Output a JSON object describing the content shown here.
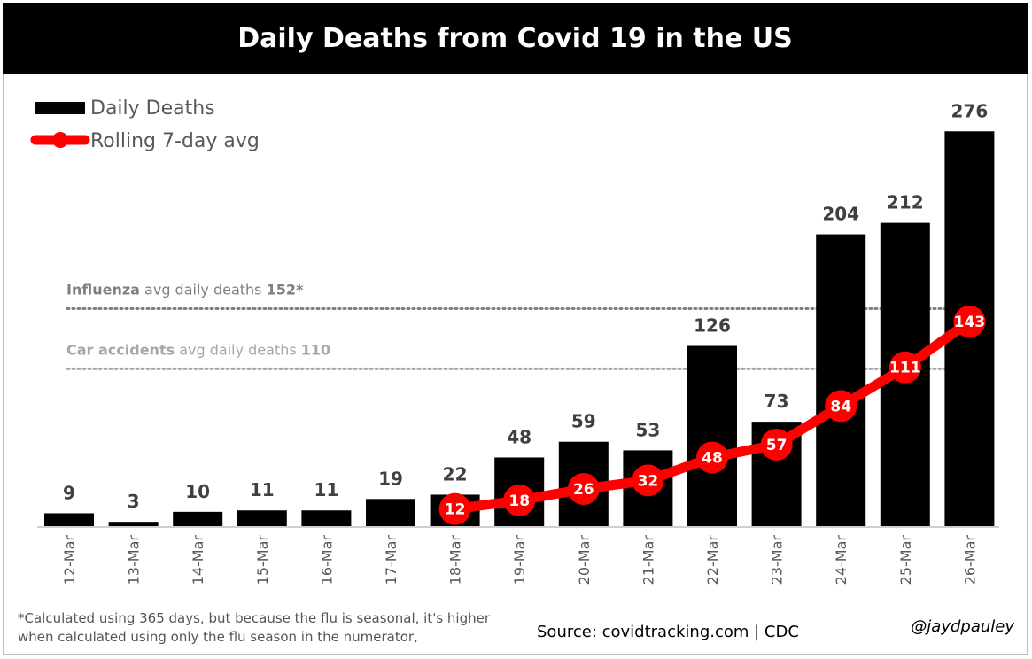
{
  "title": "Daily Deaths from Covid 19 in the US",
  "chart_data": {
    "type": "bar",
    "categories": [
      "12-Mar",
      "13-Mar",
      "14-Mar",
      "15-Mar",
      "16-Mar",
      "17-Mar",
      "18-Mar",
      "19-Mar",
      "20-Mar",
      "21-Mar",
      "22-Mar",
      "23-Mar",
      "24-Mar",
      "25-Mar",
      "26-Mar"
    ],
    "series": [
      {
        "name": "Daily Deaths",
        "type": "bar",
        "color": "#000000",
        "values": [
          9,
          3,
          10,
          11,
          11,
          19,
          22,
          48,
          59,
          53,
          126,
          73,
          204,
          212,
          276
        ]
      },
      {
        "name": "Rolling 7-day avg",
        "type": "line",
        "color": "#ff0000",
        "values": [
          null,
          null,
          null,
          null,
          null,
          null,
          12,
          18,
          26,
          32,
          48,
          57,
          84,
          111,
          143
        ]
      }
    ],
    "reference_lines": [
      {
        "bold_label": "Influenza",
        "label": "avg daily deaths",
        "value_label": "152*",
        "value": 152
      },
      {
        "bold_label": "Car accidents",
        "label": "avg daily deaths",
        "value_label": "110",
        "value": 110
      }
    ],
    "ylim": [
      0,
      290
    ],
    "grid": false,
    "legend_position": "top-left"
  },
  "footnote": "*Calculated using 365 days, but because the flu is seasonal, it's higher when calculated using only the flu season in the numerator,",
  "source": "Source: covidtracking.com | CDC",
  "handle": "@jaydpauley"
}
